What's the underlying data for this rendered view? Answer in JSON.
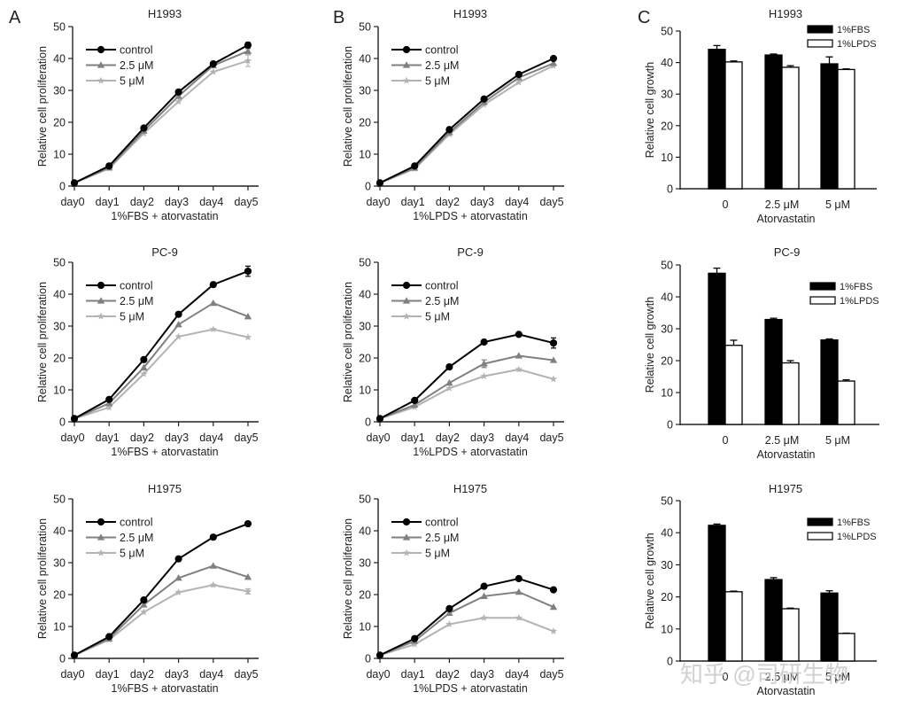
{
  "figure": {
    "panel_letters": [
      "A",
      "B",
      "C"
    ],
    "watermark": "知乎 @司研生物"
  },
  "chart_data": [
    {
      "id": "A1",
      "panel": "A",
      "type": "line",
      "title": "H1993",
      "xlabel": "1%FBS + atorvastatin",
      "ylabel": "Relative cell proliferation",
      "categories": [
        "day0",
        "day1",
        "day2",
        "day3",
        "day4",
        "day5"
      ],
      "ylim": [
        0,
        50
      ],
      "yticks": [
        0,
        10,
        20,
        30,
        40,
        50
      ],
      "grid": false,
      "legend": "top-left",
      "series": [
        {
          "name": "control",
          "color": "#000000",
          "marker": "circle",
          "values": [
            1,
            6.3,
            18.2,
            29.5,
            38.3,
            44.2
          ],
          "errors": [
            0,
            0.3,
            0.4,
            0.4,
            0.4,
            0.8
          ]
        },
        {
          "name": "2.5 μM",
          "color": "#808080",
          "marker": "triangle",
          "values": [
            1,
            5.8,
            17.3,
            28.2,
            37.8,
            42.3
          ],
          "errors": [
            0,
            0.3,
            0.4,
            0.4,
            0.4,
            0.8
          ]
        },
        {
          "name": "5 μM",
          "color": "#b3b3b3",
          "marker": "star",
          "values": [
            1,
            5.5,
            16.5,
            26.5,
            35.8,
            39.3
          ],
          "errors": [
            0,
            0.3,
            0.4,
            0.4,
            0.5,
            1.8
          ]
        }
      ]
    },
    {
      "id": "A2",
      "panel": "A",
      "type": "line",
      "title": "PC-9",
      "xlabel": "1%FBS + atorvastatin",
      "ylabel": "Relative cell proliferation",
      "categories": [
        "day0",
        "day1",
        "day2",
        "day3",
        "day4",
        "day5"
      ],
      "ylim": [
        0,
        50
      ],
      "yticks": [
        0,
        10,
        20,
        30,
        40,
        50
      ],
      "grid": false,
      "legend": "top-left",
      "series": [
        {
          "name": "control",
          "color": "#000000",
          "marker": "circle",
          "values": [
            1,
            7,
            19.5,
            33.7,
            43,
            47.2
          ],
          "errors": [
            0,
            0.3,
            0.4,
            0.4,
            0.4,
            1.6
          ]
        },
        {
          "name": "2.5 μM",
          "color": "#808080",
          "marker": "triangle",
          "values": [
            1,
            5.8,
            17,
            30.5,
            37.2,
            33
          ],
          "errors": [
            0,
            0.3,
            0.4,
            0.4,
            0.5,
            0.4
          ]
        },
        {
          "name": "5 μM",
          "color": "#b3b3b3",
          "marker": "star",
          "values": [
            1,
            4.5,
            15,
            26.7,
            29,
            26.5
          ],
          "errors": [
            0,
            0.3,
            0.4,
            0.4,
            0.4,
            0.4
          ]
        }
      ]
    },
    {
      "id": "A3",
      "panel": "A",
      "type": "line",
      "title": "H1975",
      "xlabel": "1%FBS + atorvastatin",
      "ylabel": "Relative cell proliferation",
      "categories": [
        "day0",
        "day1",
        "day2",
        "day3",
        "day4",
        "day5"
      ],
      "ylim": [
        0,
        50
      ],
      "yticks": [
        0,
        10,
        20,
        30,
        40,
        50
      ],
      "grid": false,
      "legend": "top-left",
      "series": [
        {
          "name": "control",
          "color": "#000000",
          "marker": "circle",
          "values": [
            1,
            6.8,
            18.3,
            31.2,
            38,
            42.2
          ],
          "errors": [
            0,
            0.3,
            0.4,
            0.4,
            0.4,
            0.4
          ]
        },
        {
          "name": "2.5 μM",
          "color": "#808080",
          "marker": "triangle",
          "values": [
            1,
            6.2,
            16.8,
            25.2,
            29,
            25.5
          ],
          "errors": [
            0,
            0.3,
            0.4,
            0.4,
            0.4,
            0.5
          ]
        },
        {
          "name": "5 μM",
          "color": "#b3b3b3",
          "marker": "star",
          "values": [
            1,
            5.8,
            14.5,
            20.7,
            23,
            21
          ],
          "errors": [
            0,
            0.3,
            0.4,
            0.4,
            0.4,
            0.8
          ]
        }
      ]
    },
    {
      "id": "B1",
      "panel": "B",
      "type": "line",
      "title": "H1993",
      "xlabel": "1%LPDS + atorvastatin",
      "ylabel": "Relative cell proliferation",
      "categories": [
        "day0",
        "day1",
        "day2",
        "day3",
        "day4",
        "day5"
      ],
      "ylim": [
        0,
        50
      ],
      "yticks": [
        0,
        10,
        20,
        30,
        40,
        50
      ],
      "grid": false,
      "legend": "top-left",
      "series": [
        {
          "name": "control",
          "color": "#000000",
          "marker": "circle",
          "values": [
            1,
            6.3,
            17.7,
            27.3,
            35,
            40
          ],
          "errors": [
            0,
            0.3,
            0.4,
            0.4,
            0.5,
            0.4
          ]
        },
        {
          "name": "2.5 μM",
          "color": "#808080",
          "marker": "triangle",
          "values": [
            1,
            5.7,
            16.8,
            26.3,
            34,
            38.5
          ],
          "errors": [
            0,
            0.3,
            0.4,
            0.4,
            0.5,
            0.4
          ]
        },
        {
          "name": "5 μM",
          "color": "#b3b3b3",
          "marker": "star",
          "values": [
            1,
            5.4,
            16.2,
            25.5,
            32.5,
            37.7
          ],
          "errors": [
            0,
            0.3,
            0.4,
            0.4,
            0.5,
            0.4
          ]
        }
      ]
    },
    {
      "id": "B2",
      "panel": "B",
      "type": "line",
      "title": "PC-9",
      "xlabel": "1%LPDS + atorvastatin",
      "ylabel": "Relative cell proliferation",
      "categories": [
        "day0",
        "day1",
        "day2",
        "day3",
        "day4",
        "day5"
      ],
      "ylim": [
        0,
        50
      ],
      "yticks": [
        0,
        10,
        20,
        30,
        40,
        50
      ],
      "grid": false,
      "legend": "top-left",
      "series": [
        {
          "name": "control",
          "color": "#000000",
          "marker": "circle",
          "values": [
            1,
            6.7,
            17.2,
            25,
            27.4,
            24.7
          ],
          "errors": [
            0,
            0.3,
            0.4,
            0.4,
            0.4,
            1.6
          ]
        },
        {
          "name": "2.5 μM",
          "color": "#808080",
          "marker": "triangle",
          "values": [
            1,
            5.3,
            12.2,
            18.2,
            20.7,
            19.3
          ],
          "errors": [
            0,
            0.3,
            0.4,
            1.2,
            0.4,
            0.5
          ]
        },
        {
          "name": "5 μM",
          "color": "#b3b3b3",
          "marker": "star",
          "values": [
            1,
            4.6,
            10.5,
            14.3,
            16.4,
            13.4
          ],
          "errors": [
            0,
            0.3,
            0.4,
            0.4,
            0.4,
            0.5
          ]
        }
      ]
    },
    {
      "id": "B3",
      "panel": "B",
      "type": "line",
      "title": "H1975",
      "xlabel": "1%LPDS + atorvastatin",
      "ylabel": "Relative cell proliferation",
      "categories": [
        "day0",
        "day1",
        "day2",
        "day3",
        "day4",
        "day5"
      ],
      "ylim": [
        0,
        50
      ],
      "yticks": [
        0,
        10,
        20,
        30,
        40,
        50
      ],
      "grid": false,
      "legend": "top-left",
      "series": [
        {
          "name": "control",
          "color": "#000000",
          "marker": "circle",
          "values": [
            1,
            6.2,
            15.6,
            22.6,
            25,
            21.5
          ],
          "errors": [
            0,
            0.3,
            0.4,
            0.4,
            0.4,
            0.4
          ]
        },
        {
          "name": "2.5 μM",
          "color": "#808080",
          "marker": "triangle",
          "values": [
            1,
            5.4,
            14.2,
            19.5,
            20.8,
            16.1
          ],
          "errors": [
            0,
            0.3,
            0.4,
            0.4,
            0.4,
            0.4
          ]
        },
        {
          "name": "5 μM",
          "color": "#b3b3b3",
          "marker": "star",
          "values": [
            1,
            4.4,
            10.7,
            12.7,
            12.7,
            8.5
          ],
          "errors": [
            0,
            0.3,
            0.4,
            0.4,
            0.4,
            0.4
          ]
        }
      ]
    },
    {
      "id": "C1",
      "panel": "C",
      "type": "bar",
      "title": "H1993",
      "xlabel": "Atorvastatin",
      "ylabel": "Relative cell growth",
      "categories": [
        "0",
        "2.5 μM",
        "5 μM"
      ],
      "ylim": [
        0,
        50
      ],
      "yticks": [
        0,
        10,
        20,
        30,
        40,
        50
      ],
      "grid": false,
      "legend": "top-right",
      "series": [
        {
          "name": "1%FBS",
          "fill": "#000000",
          "values": [
            44.2,
            42.4,
            39.6
          ],
          "errors": [
            1.2,
            0.3,
            2.2
          ]
        },
        {
          "name": "1%LPDS",
          "fill": "#ffffff",
          "values": [
            40.2,
            38.5,
            37.8
          ],
          "errors": [
            0.3,
            0.5,
            0.2
          ]
        }
      ]
    },
    {
      "id": "C2",
      "panel": "C",
      "type": "bar",
      "title": "PC-9",
      "xlabel": "Atorvastatin",
      "ylabel": "Relative cell growth",
      "categories": [
        "0",
        "2.5 μM",
        "5 μM"
      ],
      "ylim": [
        0,
        50
      ],
      "yticks": [
        0,
        10,
        20,
        30,
        40,
        50
      ],
      "grid": false,
      "legend": "top-right",
      "series": [
        {
          "name": "1%FBS",
          "fill": "#000000",
          "values": [
            47.4,
            32.9,
            26.5
          ],
          "errors": [
            1.6,
            0.4,
            0.3
          ]
        },
        {
          "name": "1%LPDS",
          "fill": "#ffffff",
          "values": [
            24.8,
            19.3,
            13.6
          ],
          "errors": [
            1.6,
            0.7,
            0.4
          ]
        }
      ]
    },
    {
      "id": "C3",
      "panel": "C",
      "type": "bar",
      "title": "H1975",
      "xlabel": "Atorvastatin",
      "ylabel": "Relative cell growth",
      "categories": [
        "0",
        "2.5 μM",
        "5 μM"
      ],
      "ylim": [
        0,
        50
      ],
      "yticks": [
        0,
        10,
        20,
        30,
        40,
        50
      ],
      "grid": false,
      "legend": "top-right",
      "series": [
        {
          "name": "1%FBS",
          "fill": "#000000",
          "values": [
            42.3,
            25.4,
            21.2
          ],
          "errors": [
            0.4,
            0.6,
            0.7
          ]
        },
        {
          "name": "1%LPDS",
          "fill": "#ffffff",
          "values": [
            21.6,
            16.3,
            8.6
          ],
          "errors": [
            0.2,
            0.2,
            0.1
          ]
        }
      ]
    }
  ]
}
